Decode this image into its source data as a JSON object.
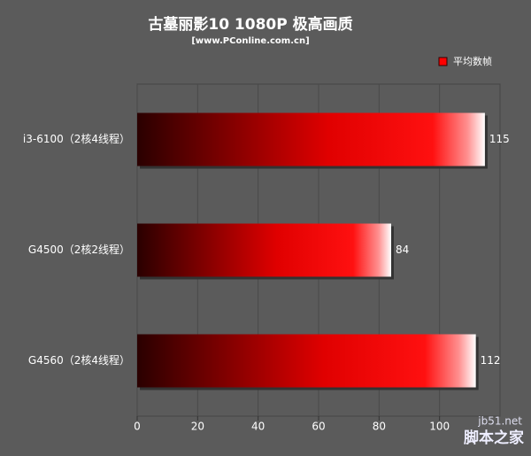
{
  "chart_data": {
    "type": "bar",
    "orientation": "horizontal",
    "title": "古墓丽影10 1080P 极高画质",
    "subtitle": "[www.PConline.com.cn]",
    "categories": [
      "i3-6100（2核4线程）",
      "G4500（2核2线程）",
      "G4560（2核4线程）"
    ],
    "series": [
      {
        "name": "平均数帧",
        "color": "#ff0000",
        "values": [
          115,
          84,
          112
        ]
      }
    ],
    "xlim": [
      0,
      120
    ],
    "xticks": [
      0,
      20,
      40,
      60,
      80,
      100
    ],
    "grid": true,
    "legend": "top-right",
    "watermark": [
      "jb51.net",
      "脚本之家"
    ]
  }
}
